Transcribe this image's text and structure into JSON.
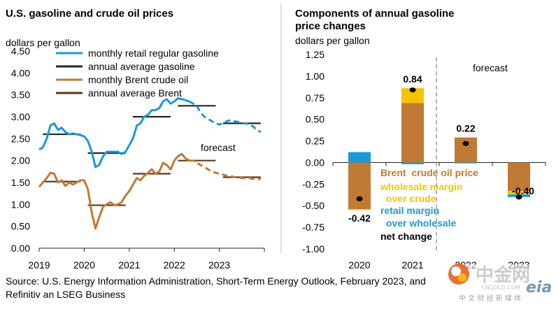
{
  "chart_data": [
    {
      "type": "line",
      "title": "U.S. gasoline and crude oil prices",
      "ylabel": "dollars per gallon",
      "xlabel": "",
      "ylim": [
        0,
        4.5
      ],
      "yticks": [
        "4.50",
        "4.00",
        "3.50",
        "3.00",
        "2.50",
        "2.00",
        "1.50",
        "1.00",
        "0.50",
        "0.00"
      ],
      "yvalues": [
        4.5,
        4.0,
        3.5,
        3.0,
        2.5,
        2.0,
        1.5,
        1.0,
        0.5,
        0.0
      ],
      "xticks": [
        "2019",
        "2020",
        "2021",
        "2022",
        "2023"
      ],
      "xlim": [
        2019.0,
        2024.0
      ],
      "forecast_start": 2022.33,
      "forecast_label": "forecast",
      "legend": [
        {
          "label": "monthly retail regular gasoline",
          "color": "#1a9ad6"
        },
        {
          "label": "annual average gasoline",
          "color": "#262626"
        },
        {
          "label": "monthly Brent crude oil",
          "color": "#c07a33"
        },
        {
          "label": "annual average Brent",
          "color": "#5a3a20"
        }
      ],
      "series": [
        {
          "name": "monthly retail regular gasoline",
          "color": "#1a9ad6",
          "x": [
            2019.0,
            2019.08,
            2019.17,
            2019.25,
            2019.33,
            2019.42,
            2019.5,
            2019.58,
            2019.67,
            2019.75,
            2019.83,
            2019.92,
            2020.0,
            2020.08,
            2020.17,
            2020.25,
            2020.33,
            2020.42,
            2020.5,
            2020.58,
            2020.67,
            2020.75,
            2020.83,
            2020.92,
            2021.0,
            2021.08,
            2021.17,
            2021.25,
            2021.33,
            2021.42,
            2021.5,
            2021.58,
            2021.67,
            2021.75,
            2021.83,
            2021.92,
            2022.0,
            2022.08,
            2022.17,
            2022.25,
            2022.33,
            2022.42,
            2022.5,
            2022.58,
            2022.67,
            2022.75,
            2022.83,
            2022.92,
            2023.0,
            2023.08,
            2023.17,
            2023.25,
            2023.33,
            2023.42,
            2023.5,
            2023.58,
            2023.67,
            2023.75,
            2023.83,
            2023.92
          ],
          "values": [
            2.25,
            2.3,
            2.5,
            2.8,
            2.85,
            2.7,
            2.75,
            2.65,
            2.6,
            2.62,
            2.6,
            2.58,
            2.55,
            2.45,
            2.2,
            1.85,
            1.9,
            2.1,
            2.2,
            2.2,
            2.2,
            2.2,
            2.15,
            2.2,
            2.35,
            2.5,
            2.8,
            2.85,
            3.0,
            3.05,
            3.15,
            3.15,
            3.2,
            3.35,
            3.4,
            3.3,
            3.35,
            3.42,
            3.4,
            3.38,
            3.35,
            3.3,
            3.25,
            3.1,
            3.0,
            2.95,
            2.9,
            2.85,
            2.82,
            2.85,
            2.9,
            2.92,
            2.9,
            2.88,
            2.85,
            2.85,
            2.82,
            2.78,
            2.7,
            2.65
          ]
        },
        {
          "name": "monthly Brent crude oil",
          "color": "#c07a33",
          "x": [
            2019.0,
            2019.08,
            2019.17,
            2019.25,
            2019.33,
            2019.42,
            2019.5,
            2019.58,
            2019.67,
            2019.75,
            2019.83,
            2019.92,
            2020.0,
            2020.08,
            2020.17,
            2020.25,
            2020.33,
            2020.42,
            2020.5,
            2020.58,
            2020.67,
            2020.75,
            2020.83,
            2020.92,
            2021.0,
            2021.08,
            2021.17,
            2021.25,
            2021.33,
            2021.42,
            2021.5,
            2021.58,
            2021.67,
            2021.75,
            2021.83,
            2021.92,
            2022.0,
            2022.08,
            2022.17,
            2022.25,
            2022.33,
            2022.42,
            2022.5,
            2022.58,
            2022.67,
            2022.75,
            2022.83,
            2022.92,
            2023.0,
            2023.08,
            2023.17,
            2023.25,
            2023.33,
            2023.42,
            2023.5,
            2023.58,
            2023.67,
            2023.75,
            2023.83,
            2023.92
          ],
          "values": [
            1.4,
            1.5,
            1.6,
            1.72,
            1.7,
            1.5,
            1.55,
            1.42,
            1.5,
            1.45,
            1.5,
            1.55,
            1.55,
            1.35,
            0.8,
            0.45,
            0.7,
            0.95,
            1.0,
            1.05,
            0.98,
            1.0,
            1.05,
            1.2,
            1.3,
            1.45,
            1.6,
            1.55,
            1.65,
            1.72,
            1.8,
            1.7,
            1.75,
            1.95,
            1.9,
            1.8,
            2.0,
            2.1,
            2.15,
            2.05,
            2.0,
            2.0,
            1.95,
            1.9,
            1.85,
            1.8,
            1.75,
            1.72,
            1.7,
            1.68,
            1.65,
            1.65,
            1.62,
            1.62,
            1.6,
            1.6,
            1.6,
            1.58,
            1.58,
            1.58
          ]
        }
      ],
      "annual_averages": [
        {
          "name": "annual average gasoline",
          "color": "#262626",
          "segments": [
            {
              "x0": 2019.0,
              "x1": 2020.0,
              "y": 2.6
            },
            {
              "x0": 2020.0,
              "x1": 2021.0,
              "y": 2.17
            },
            {
              "x0": 2021.0,
              "x1": 2022.0,
              "y": 3.0
            },
            {
              "x0": 2022.0,
              "x1": 2023.0,
              "y": 3.25
            },
            {
              "x0": 2023.0,
              "x1": 2024.0,
              "y": 2.85
            }
          ]
        },
        {
          "name": "annual average Brent",
          "color": "#5a3a20",
          "segments": [
            {
              "x0": 2019.0,
              "x1": 2020.0,
              "y": 1.52
            },
            {
              "x0": 2020.0,
              "x1": 2021.0,
              "y": 0.98
            },
            {
              "x0": 2021.0,
              "x1": 2022.0,
              "y": 1.7
            },
            {
              "x0": 2022.0,
              "x1": 2023.0,
              "y": 2.0
            },
            {
              "x0": 2023.0,
              "x1": 2024.0,
              "y": 1.62
            }
          ]
        }
      ]
    },
    {
      "type": "bar",
      "title_line1": "Components of annual gasoline",
      "title_line2": "price changes",
      "ylabel": "dollars per gallon",
      "ylim": [
        -1.0,
        1.25
      ],
      "yticks": [
        "1.25",
        "1.00",
        "0.75",
        "0.50",
        "0.25",
        "0.00",
        "-0.25",
        "-0.50",
        "-0.75",
        "-1.00"
      ],
      "yvalues": [
        1.25,
        1.0,
        0.75,
        0.5,
        0.25,
        0.0,
        -0.25,
        -0.5,
        -0.75,
        -1.0
      ],
      "categories": [
        "2020",
        "2021",
        "2022",
        "2023"
      ],
      "forecast_label": "forecast",
      "series": [
        {
          "name": "Brent crude oil price",
          "color": "#c07a33",
          "values": [
            -0.54,
            0.69,
            0.29,
            -0.33
          ]
        },
        {
          "name": "wholesale margin over crude",
          "color": "#f5c400",
          "values": [
            -0.01,
            0.17,
            0.0,
            -0.04
          ]
        },
        {
          "name": "retail margin over wholesale",
          "color": "#1a9ad6",
          "values": [
            0.12,
            -0.02,
            -0.01,
            -0.03
          ]
        }
      ],
      "net_change": {
        "name": "net change",
        "values": [
          -0.42,
          0.84,
          0.22,
          -0.4
        ],
        "labels": [
          "-0.42",
          "0.84",
          "0.22",
          "-0.40"
        ]
      },
      "legend": [
        {
          "label": "Brent  crude oil price",
          "color": "#c07a33"
        },
        {
          "label": "wholesale margin",
          "color": "#f5c400"
        },
        {
          "label": " over crude",
          "color": "#f5c400"
        },
        {
          "label": "retail margin",
          "color": "#1a9ad6"
        },
        {
          "label": " over wholesale",
          "color": "#1a9ad6"
        },
        {
          "label": "net change",
          "color": "#000000"
        }
      ]
    }
  ],
  "source_line1": "Source: U.S. Energy Information Administration, Short-Term Energy Outlook, February 2023, and",
  "source_line2": "Refinitiv an LSEG Business",
  "watermark": {
    "logo_text": "中金网",
    "url": "CNGOLD.COM",
    "subtitle": "中 文 财 经 新 媒 体",
    "eia": "eia"
  }
}
